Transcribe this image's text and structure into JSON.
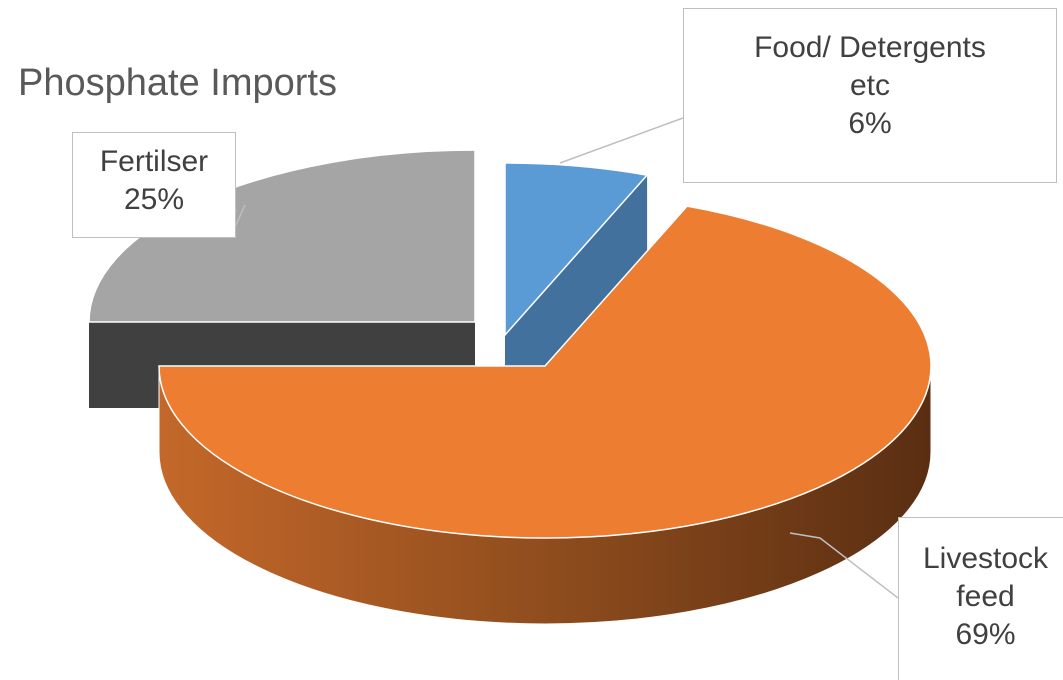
{
  "chart_data": {
    "type": "pie",
    "title": "Phosphate Imports",
    "style": "3d-exploded",
    "slices": [
      {
        "label": "Food/ Detergents etc",
        "value": 6,
        "value_label": "6%",
        "color": "#5b9bd5",
        "side_color": "#41719c"
      },
      {
        "label": "Livestock feed",
        "value": 69,
        "value_label": "69%",
        "color": "#ed7d31",
        "side_color": "#8a4a1c"
      },
      {
        "label": "Fertilser",
        "value": 25,
        "value_label": "25%",
        "color": "#a5a5a5",
        "side_color": "#404040"
      }
    ]
  },
  "callouts": {
    "food": {
      "line1": "Food/ Detergents",
      "line2": "etc",
      "line3": "6%"
    },
    "fertiliser": {
      "line1": "Fertilser",
      "line2": "25%"
    },
    "livestock": {
      "line1": "Livestock",
      "line2": "feed",
      "line3": "69%"
    }
  }
}
